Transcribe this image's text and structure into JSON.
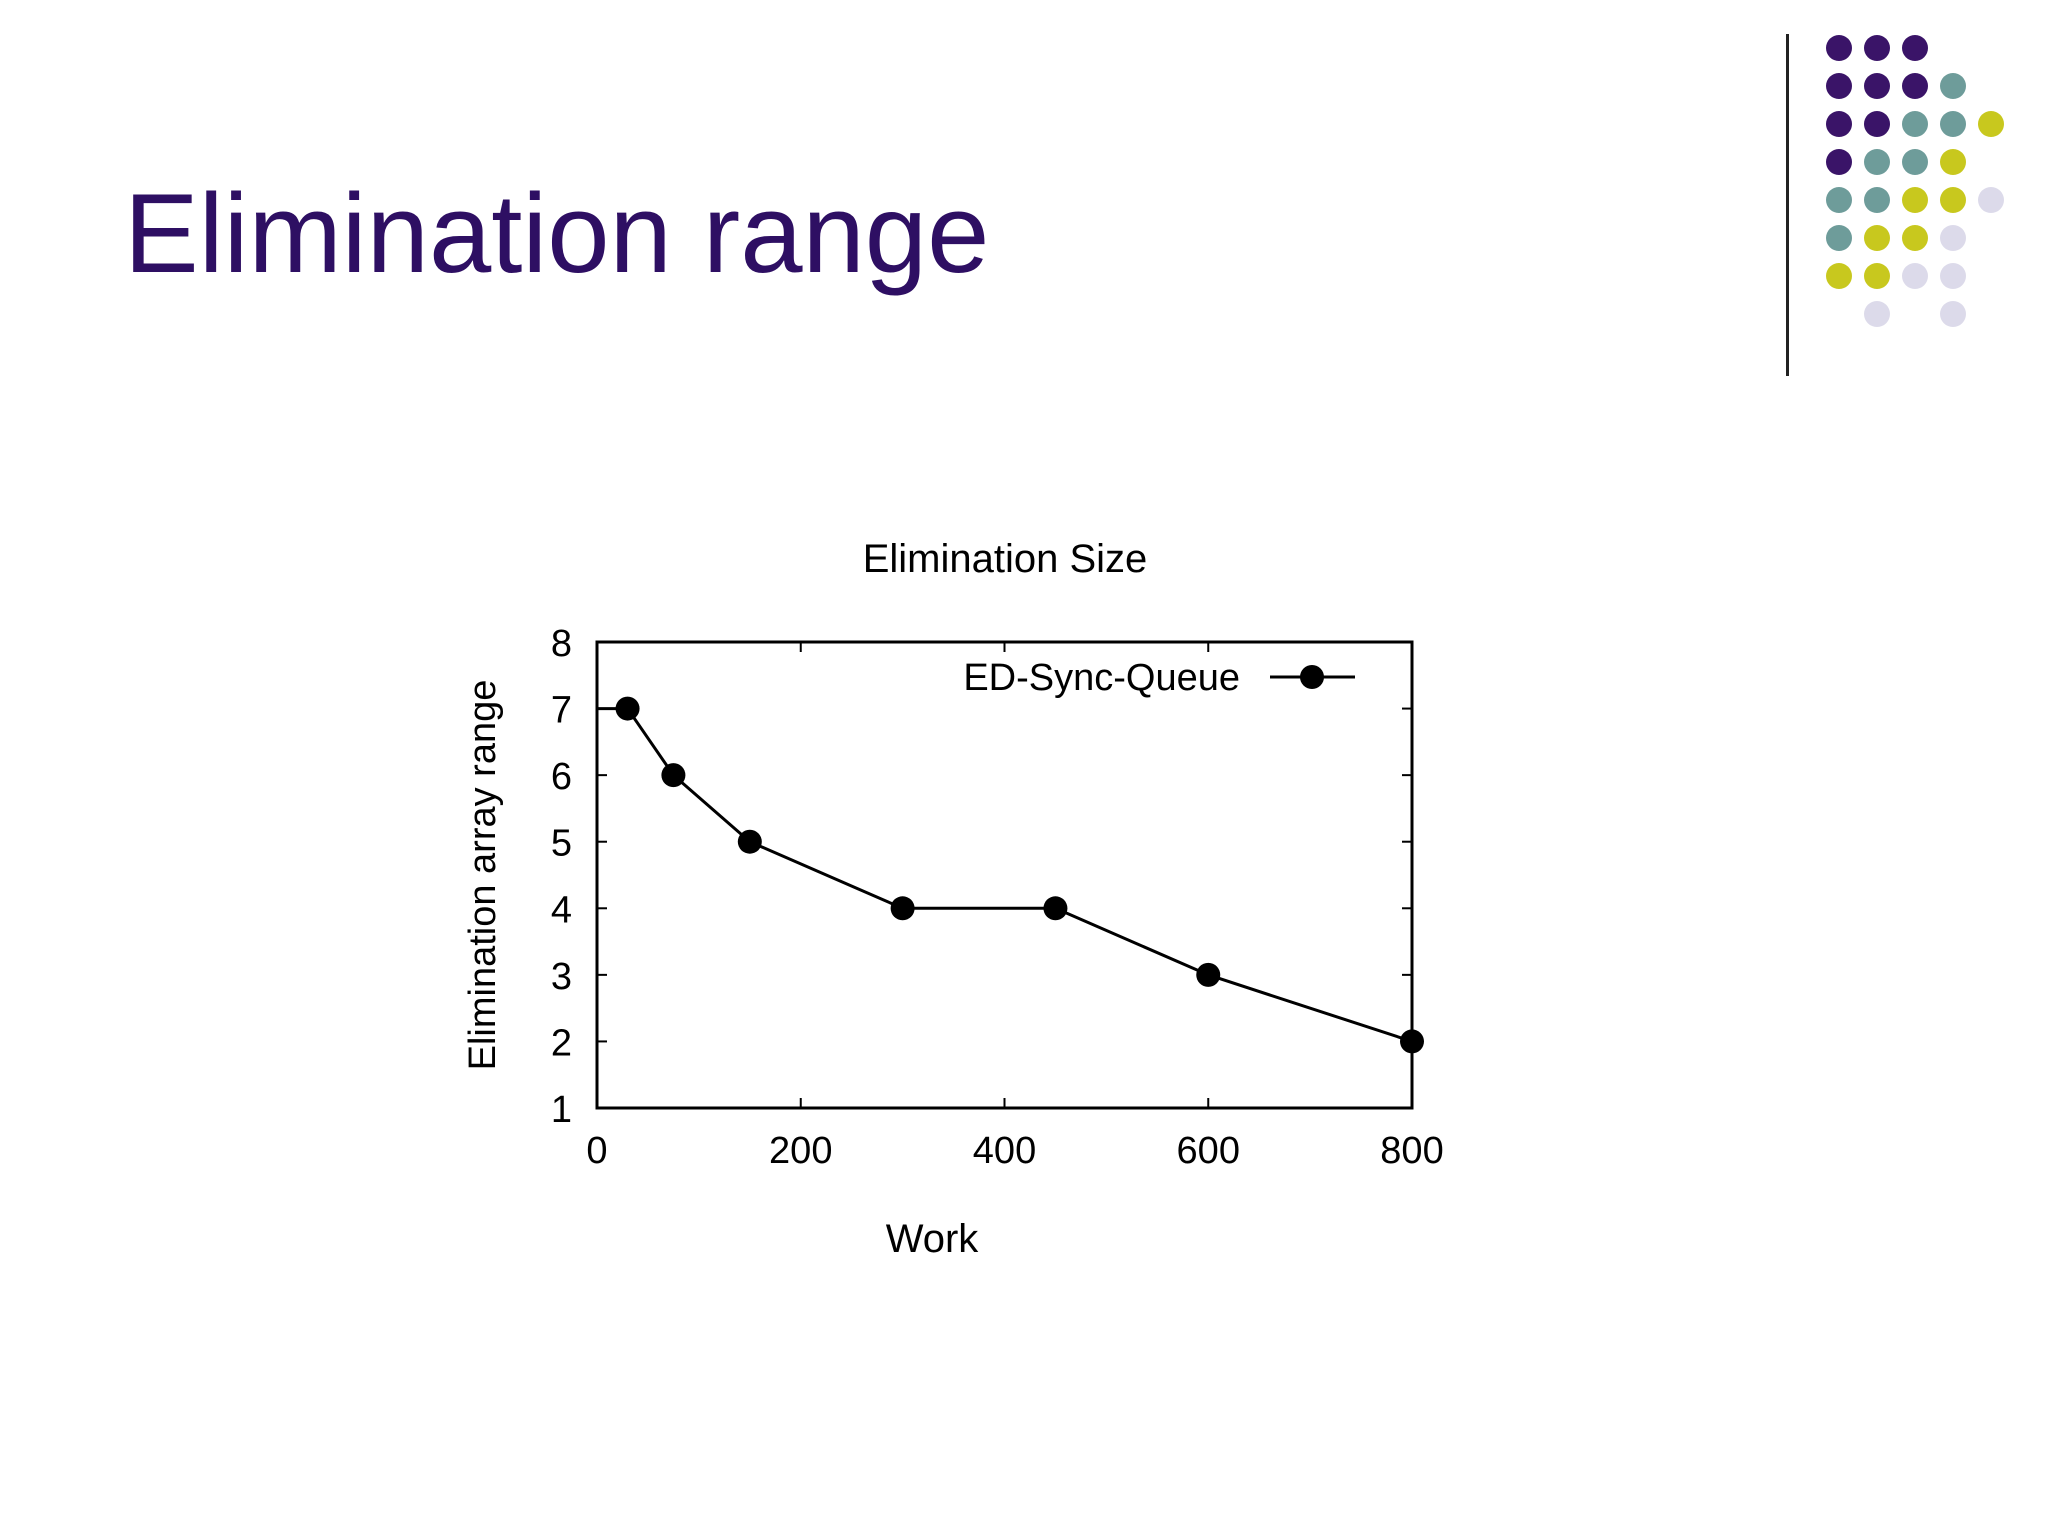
{
  "slide": {
    "title": "Elimination range"
  },
  "decoration": {
    "dot_colors": {
      "purple": "#3a1468",
      "teal": "#6e9c9a",
      "yellow": "#c8c81e",
      "lavender": "#dcdaea"
    },
    "divider_color": "#222222",
    "title_color": "#2e0f63"
  },
  "chart_data": {
    "type": "line",
    "title": "Elimination Size",
    "xlabel": "Work",
    "ylabel": "Elimination array range",
    "xlim": [
      0,
      800
    ],
    "ylim": [
      1,
      8
    ],
    "xticks": [
      0,
      200,
      400,
      600,
      800
    ],
    "yticks": [
      1,
      2,
      3,
      4,
      5,
      6,
      7,
      8
    ],
    "grid": false,
    "legend": "top-right",
    "series": [
      {
        "name": "ED-Sync-Queue",
        "marker": "circle",
        "color": "#000000",
        "x": [
          0,
          30,
          75,
          150,
          300,
          450,
          600,
          800
        ],
        "y": [
          7,
          7,
          6,
          5,
          4,
          4,
          3,
          2
        ]
      }
    ]
  }
}
